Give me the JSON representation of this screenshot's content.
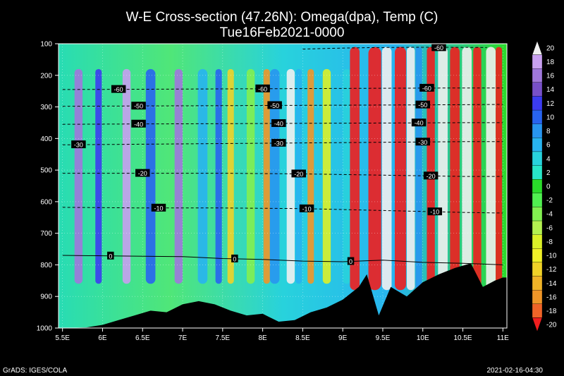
{
  "chart_data": {
    "type": "heatmap",
    "title": "W-E Cross-section (47.26N): Omega(dpa), Temp (C)",
    "subtitle": "Tue16Feb2021-0000",
    "x_ticks": [
      "5.5E",
      "6E",
      "6.5E",
      "7E",
      "7.5E",
      "8E",
      "8.5E",
      "9E",
      "9.5E",
      "10E",
      "10.5E",
      "11E"
    ],
    "x_values": [
      5.5,
      6.0,
      6.5,
      7.0,
      7.5,
      8.0,
      8.5,
      9.0,
      9.5,
      10.0,
      10.5,
      11.0
    ],
    "xlim": [
      5.45,
      11.05
    ],
    "y_ticks": [
      "100",
      "200",
      "300",
      "400",
      "500",
      "600",
      "700",
      "800",
      "900",
      "1000"
    ],
    "y_values": [
      100,
      200,
      300,
      400,
      500,
      600,
      700,
      800,
      900,
      1000
    ],
    "ylim": [
      100,
      1000
    ],
    "colorbar": {
      "levels": [
        "20",
        "18",
        "16",
        "14",
        "12",
        "10",
        "8",
        "6",
        "4",
        "2",
        "0",
        "-2",
        "-4",
        "-6",
        "-8",
        "-10",
        "-12",
        "-14",
        "-16",
        "-18",
        "-20"
      ],
      "colors": [
        "#f0f0f0",
        "#c8a0f0",
        "#a078dc",
        "#7850c8",
        "#3c3cf0",
        "#2864f0",
        "#2896f0",
        "#28b4f0",
        "#28d2dc",
        "#28e6c8",
        "#2adc2a",
        "#50f050",
        "#82f050",
        "#b4f050",
        "#dcf028",
        "#f0f028",
        "#f0d228",
        "#f0b428",
        "#f09628",
        "#f06428",
        "#f01e1e"
      ]
    },
    "temperature_contours": [
      {
        "label": "-60",
        "p": 242,
        "points": [
          [
            5.5,
            245
          ],
          [
            6.5,
            244
          ],
          [
            7.5,
            243
          ],
          [
            8.5,
            242
          ],
          [
            9.5,
            241
          ],
          [
            10.5,
            240
          ],
          [
            11.0,
            240
          ]
        ],
        "label_x": [
          6.2,
          8.0,
          10.05
        ]
      },
      {
        "label": "-50",
        "p": 295,
        "points": [
          [
            5.5,
            298
          ],
          [
            6.5,
            297
          ],
          [
            7.5,
            296
          ],
          [
            8.5,
            295
          ],
          [
            9.5,
            294
          ],
          [
            10.5,
            293
          ],
          [
            11.0,
            292
          ]
        ],
        "label_x": [
          6.45,
          8.15,
          10.0
        ]
      },
      {
        "label": "-40",
        "p": 352,
        "points": [
          [
            5.5,
            355
          ],
          [
            6.5,
            354
          ],
          [
            7.5,
            353
          ],
          [
            8.5,
            352
          ],
          [
            9.5,
            351
          ],
          [
            10.5,
            350
          ],
          [
            11.0,
            350
          ]
        ],
        "label_x": [
          6.45,
          8.2,
          9.95
        ]
      },
      {
        "label": "-30",
        "p": 415,
        "points": [
          [
            5.5,
            420
          ],
          [
            6.5,
            418
          ],
          [
            7.5,
            416
          ],
          [
            8.5,
            414
          ],
          [
            9.5,
            412
          ],
          [
            10.5,
            410
          ],
          [
            11.0,
            410
          ]
        ],
        "label_x": [
          5.7,
          8.2,
          10.0
        ]
      },
      {
        "label": "-20",
        "p": 512,
        "points": [
          [
            5.5,
            510
          ],
          [
            6.5,
            510
          ],
          [
            7.5,
            510
          ],
          [
            8.5,
            512
          ],
          [
            9.5,
            516
          ],
          [
            10.5,
            520
          ],
          [
            11.0,
            520
          ]
        ],
        "label_x": [
          6.5,
          8.45,
          10.1
        ]
      },
      {
        "label": "-10",
        "p": 622,
        "points": [
          [
            5.5,
            618
          ],
          [
            6.5,
            620
          ],
          [
            7.5,
            620
          ],
          [
            8.5,
            622
          ],
          [
            9.5,
            628
          ],
          [
            10.5,
            634
          ],
          [
            11.0,
            636
          ]
        ],
        "label_x": [
          6.7,
          8.55,
          10.15
        ]
      },
      {
        "label": "0",
        "p": 778,
        "points": [
          [
            5.5,
            770
          ],
          [
            6.2,
            772
          ],
          [
            7.0,
            774
          ],
          [
            7.5,
            780
          ],
          [
            8.0,
            783
          ],
          [
            8.5,
            788
          ],
          [
            9.0,
            790
          ],
          [
            9.5,
            785
          ],
          [
            10.0,
            792
          ],
          [
            10.5,
            795
          ],
          [
            11.0,
            800
          ]
        ],
        "label_x": [
          6.1,
          7.65,
          9.1
        ]
      }
    ],
    "top_contour": {
      "label": "-60",
      "label_x": 10.2,
      "p": 112
    },
    "terrain": [
      [
        5.5,
        1000
      ],
      [
        5.8,
        998
      ],
      [
        6.0,
        990
      ],
      [
        6.2,
        975
      ],
      [
        6.4,
        960
      ],
      [
        6.6,
        945
      ],
      [
        6.8,
        950
      ],
      [
        7.0,
        925
      ],
      [
        7.2,
        915
      ],
      [
        7.4,
        925
      ],
      [
        7.6,
        945
      ],
      [
        7.8,
        960
      ],
      [
        8.0,
        955
      ],
      [
        8.2,
        980
      ],
      [
        8.4,
        975
      ],
      [
        8.6,
        950
      ],
      [
        8.8,
        935
      ],
      [
        9.0,
        910
      ],
      [
        9.2,
        870
      ],
      [
        9.3,
        830
      ],
      [
        9.45,
        960
      ],
      [
        9.6,
        870
      ],
      [
        9.8,
        900
      ],
      [
        10.0,
        855
      ],
      [
        10.2,
        830
      ],
      [
        10.4,
        810
      ],
      [
        10.6,
        795
      ],
      [
        10.75,
        870
      ],
      [
        10.9,
        850
      ],
      [
        11.0,
        840
      ]
    ]
  },
  "footer": {
    "left": "GrADS: IGES/COLA",
    "right": "2021-02-16-04:30"
  }
}
